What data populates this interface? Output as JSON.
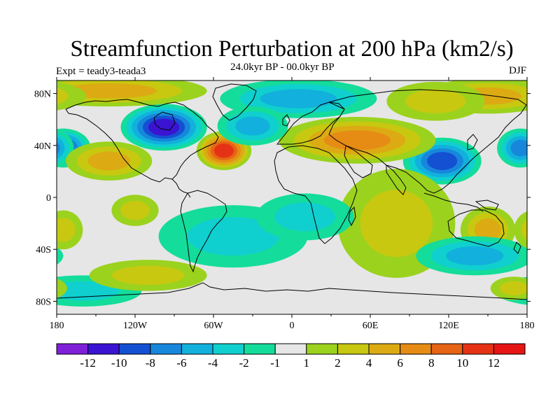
{
  "title": "Streamfunction Perturbation at 200 hPa (km2/s)",
  "subtitle": "24.0kyr BP - 00.0kyr BP",
  "left_label": "Expt = teady3-teada3",
  "right_label": "DJF",
  "colors": {
    "neutral": "#e6e6e6",
    "coast": "#000000"
  },
  "colorbar": {
    "colors": [
      "#7f1fd8",
      "#3a14d2",
      "#1450d2",
      "#1787dc",
      "#12b0dc",
      "#10cfcf",
      "#14dc9b",
      "#e6e6e6",
      "#9bd21e",
      "#c8c810",
      "#dcab14",
      "#e68c14",
      "#e66414",
      "#e63214",
      "#e61414"
    ],
    "labels": [
      "-12",
      "-10",
      "-8",
      "-6",
      "-4",
      "-2",
      "-1",
      "1",
      "2",
      "4",
      "6",
      "8",
      "10",
      "12"
    ]
  },
  "x_ticks": [
    "180",
    "120W",
    "60W",
    "0",
    "60E",
    "120E",
    "180"
  ],
  "y_ticks": [
    "80N",
    "40N",
    "0",
    "40S",
    "80S"
  ],
  "chart_data": {
    "type": "heatmap",
    "title": "Streamfunction Perturbation at 200 hPa (km2/s)",
    "subtitle": "24.0kyr BP - 00.0kyr BP",
    "season": "DJF",
    "experiment": "teady3-teada3",
    "x_range": [
      -180,
      180
    ],
    "y_range": [
      -90,
      90
    ],
    "levels": [
      -12,
      -10,
      -8,
      -6,
      -4,
      -2,
      -1,
      1,
      2,
      4,
      6,
      8,
      10,
      12
    ],
    "features": [
      {
        "lon": -52,
        "lat": 36,
        "value": 11,
        "rx": 14,
        "ry": 10
      },
      {
        "lon": -98,
        "lat": 54,
        "value": -11,
        "rx": 22,
        "ry": 12
      },
      {
        "lon": -175,
        "lat": 38,
        "value": -8,
        "rx": 14,
        "ry": 10
      },
      {
        "lon": 175,
        "lat": 38,
        "value": -6,
        "rx": 12,
        "ry": 10
      },
      {
        "lon": 115,
        "lat": 28,
        "value": -9,
        "rx": 20,
        "ry": 12
      },
      {
        "lon": 50,
        "lat": 44,
        "value": 7,
        "rx": 40,
        "ry": 12
      },
      {
        "lon": -140,
        "lat": 28,
        "value": 5,
        "rx": 22,
        "ry": 10
      },
      {
        "lon": -140,
        "lat": 82,
        "value": 5,
        "rx": 50,
        "ry": 8
      },
      {
        "lon": 150,
        "lat": 78,
        "value": 5,
        "rx": 35,
        "ry": 9
      },
      {
        "lon": 110,
        "lat": 74,
        "value": 3,
        "rx": 25,
        "ry": 10
      },
      {
        "lon": 5,
        "lat": 76,
        "value": -4,
        "rx": 40,
        "ry": 10
      },
      {
        "lon": -30,
        "lat": 55,
        "value": -5,
        "rx": 18,
        "ry": 10
      },
      {
        "lon": 80,
        "lat": -20,
        "value": 4,
        "rx": 30,
        "ry": 28
      },
      {
        "lon": 150,
        "lat": -25,
        "value": 5,
        "rx": 14,
        "ry": 12
      },
      {
        "lon": -120,
        "lat": -10,
        "value": 4,
        "rx": 12,
        "ry": 8
      },
      {
        "lon": -45,
        "lat": -30,
        "value": -3,
        "rx": 38,
        "ry": 16
      },
      {
        "lon": 10,
        "lat": -15,
        "value": -3,
        "rx": 25,
        "ry": 12
      },
      {
        "lon": 140,
        "lat": -45,
        "value": -4,
        "rx": 30,
        "ry": 10
      },
      {
        "lon": -160,
        "lat": -72,
        "value": -3,
        "rx": 30,
        "ry": 8
      },
      {
        "lon": -110,
        "lat": -60,
        "value": 3,
        "rx": 30,
        "ry": 8
      },
      {
        "lon": 170,
        "lat": -70,
        "value": 4,
        "rx": 12,
        "ry": 6
      },
      {
        "lon": -175,
        "lat": -25,
        "value": 4,
        "rx": 10,
        "ry": 10
      }
    ]
  }
}
